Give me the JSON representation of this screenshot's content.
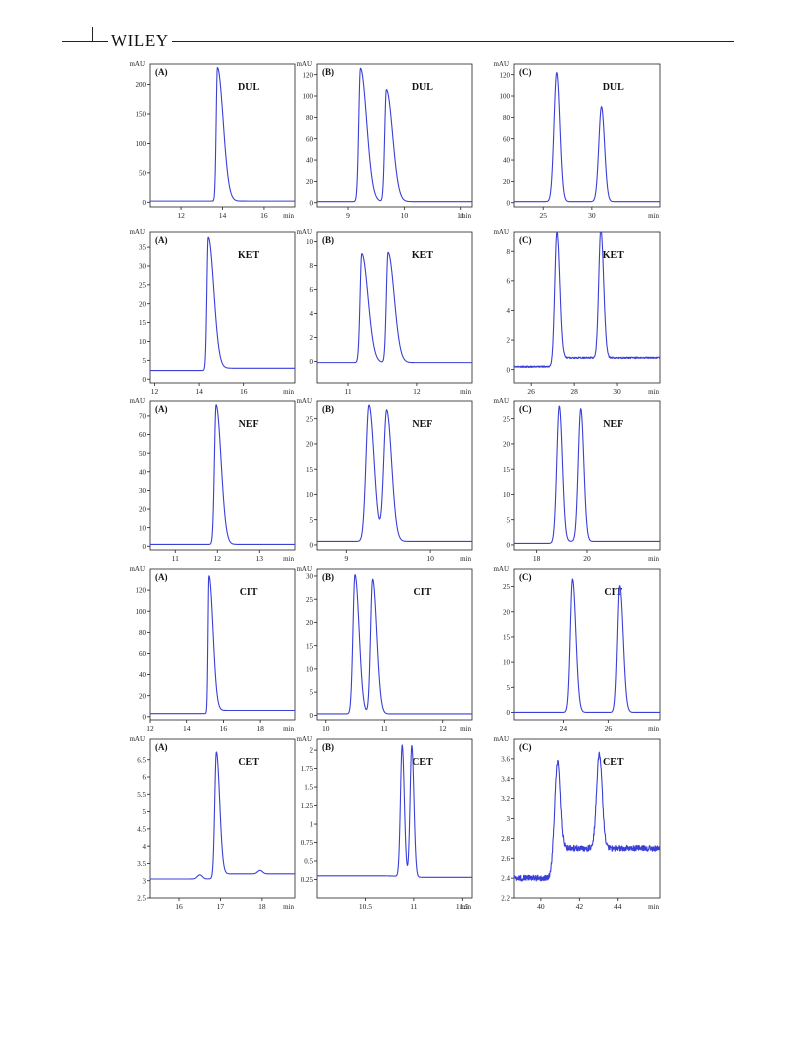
{
  "header": {
    "publisher": "WILEY"
  },
  "colors": {
    "trace": "#3a3fd6",
    "axis": "#222222"
  },
  "chart_data": [
    {
      "type": "line",
      "panel": "(A)",
      "analyte": "DUL",
      "xlabel": "min",
      "ylabel": "mAU",
      "xlim": [
        10.5,
        17.5
      ],
      "ylim": [
        -8,
        235
      ],
      "xticks": [
        12,
        14,
        16
      ],
      "xtick_labels": [
        "12",
        "14",
        "16"
      ],
      "yticks": [
        0,
        50,
        100,
        150,
        200
      ],
      "ytick_labels": [
        "0",
        "50",
        "100",
        "150",
        "200"
      ],
      "series": [
        {
          "baseline": 2,
          "tail": 0,
          "peaks": [
            {
              "rt": 13.75,
              "height": 227,
              "rise": 0.06,
              "decay": 0.28
            }
          ]
        }
      ]
    },
    {
      "type": "line",
      "panel": "(B)",
      "analyte": "DUL",
      "xlabel": "min",
      "ylabel": "mAU",
      "xlim": [
        8.45,
        11.2
      ],
      "ylim": [
        -4,
        130
      ],
      "xticks": [
        9,
        10,
        11
      ],
      "xtick_labels": [
        "9",
        "10",
        "11"
      ],
      "yticks": [
        0,
        20,
        40,
        60,
        80,
        100,
        120
      ],
      "ytick_labels": [
        "0",
        "20",
        "40",
        "60",
        "80",
        "100",
        "120"
      ],
      "series": [
        {
          "baseline": 1,
          "tail": 0,
          "peaks": [
            {
              "rt": 9.22,
              "height": 125,
              "rise": 0.03,
              "decay": 0.11
            },
            {
              "rt": 9.68,
              "height": 105,
              "rise": 0.03,
              "decay": 0.11
            }
          ]
        }
      ]
    },
    {
      "type": "line",
      "panel": "(C)",
      "analyte": "DUL",
      "xlabel": "min",
      "ylabel": "mAU",
      "xlim": [
        22,
        37
      ],
      "ylim": [
        -4,
        130
      ],
      "xticks": [
        25,
        30
      ],
      "xtick_labels": [
        "25",
        "30"
      ],
      "yticks": [
        0,
        20,
        40,
        60,
        80,
        100,
        120
      ],
      "ytick_labels": [
        "0",
        "20",
        "40",
        "60",
        "80",
        "100",
        "120"
      ],
      "series": [
        {
          "baseline": 1,
          "tail": 0,
          "peaks": [
            {
              "rt": 26.4,
              "height": 121,
              "rise": 0.28,
              "decay": 0.32
            },
            {
              "rt": 31.0,
              "height": 89,
              "rise": 0.28,
              "decay": 0.32
            }
          ]
        }
      ]
    },
    {
      "type": "line",
      "panel": "(A)",
      "analyte": "KET",
      "xlabel": "min",
      "ylabel": "mAU",
      "xlim": [
        11.8,
        18.3
      ],
      "ylim": [
        -1,
        39
      ],
      "xticks": [
        12,
        14,
        16
      ],
      "xtick_labels": [
        "12",
        "14",
        "16"
      ],
      "yticks": [
        0,
        5,
        10,
        15,
        20,
        25,
        30,
        35
      ],
      "ytick_labels": [
        "0",
        "5",
        "10",
        "15",
        "20",
        "25",
        "30",
        "35"
      ],
      "series": [
        {
          "baseline": 2.3,
          "tail": 0.6,
          "peaks": [
            {
              "rt": 14.4,
              "height": 35,
              "rise": 0.06,
              "decay": 0.25
            }
          ]
        }
      ]
    },
    {
      "type": "line",
      "panel": "(B)",
      "analyte": "KET",
      "xlabel": "min",
      "ylabel": "mAU",
      "xlim": [
        10.55,
        12.8
      ],
      "ylim": [
        -1.8,
        10.8
      ],
      "xticks": [
        11,
        12
      ],
      "xtick_labels": [
        "11",
        "12"
      ],
      "yticks": [
        0,
        2,
        4,
        6,
        8,
        10
      ],
      "ytick_labels": [
        "0",
        "2",
        "4",
        "6",
        "8",
        "10"
      ],
      "series": [
        {
          "baseline": -0.1,
          "tail": 0,
          "peaks": [
            {
              "rt": 11.2,
              "height": 9.1,
              "rise": 0.025,
              "decay": 0.09
            },
            {
              "rt": 11.58,
              "height": 9.2,
              "rise": 0.025,
              "decay": 0.09
            }
          ]
        }
      ]
    },
    {
      "type": "line",
      "panel": "(C)",
      "analyte": "KET",
      "xlabel": "min",
      "ylabel": "mAU",
      "xlim": [
        25.2,
        32
      ],
      "ylim": [
        -0.9,
        9.3
      ],
      "xticks": [
        26,
        28,
        30
      ],
      "xtick_labels": [
        "26",
        "28",
        "30"
      ],
      "yticks": [
        0,
        2,
        4,
        6,
        8
      ],
      "ytick_labels": [
        "0",
        "2",
        "4",
        "6",
        "8"
      ],
      "series": [
        {
          "baseline": 0.2,
          "tail": 0.6,
          "noise": 0.05,
          "peaks": [
            {
              "rt": 27.2,
              "height": 8.8,
              "rise": 0.1,
              "decay": 0.13
            },
            {
              "rt": 29.25,
              "height": 8.7,
              "rise": 0.1,
              "decay": 0.13
            }
          ]
        }
      ]
    },
    {
      "type": "line",
      "panel": "(A)",
      "analyte": "NEF",
      "xlabel": "min",
      "ylabel": "mAU",
      "xlim": [
        10.4,
        13.85
      ],
      "ylim": [
        -2,
        78
      ],
      "xticks": [
        11,
        12,
        13
      ],
      "xtick_labels": [
        "11",
        "12",
        "13"
      ],
      "yticks": [
        0,
        10,
        20,
        30,
        40,
        50,
        60,
        70
      ],
      "ytick_labels": [
        "0",
        "10",
        "20",
        "30",
        "40",
        "50",
        "60",
        "70"
      ],
      "series": [
        {
          "baseline": 1,
          "tail": 0,
          "peaks": [
            {
              "rt": 11.97,
              "height": 75,
              "rise": 0.04,
              "decay": 0.12
            }
          ]
        }
      ]
    },
    {
      "type": "line",
      "panel": "(B)",
      "analyte": "NEF",
      "xlabel": "min",
      "ylabel": "mAU",
      "xlim": [
        8.65,
        10.5
      ],
      "ylim": [
        -1,
        28.5
      ],
      "xticks": [
        9,
        10
      ],
      "xtick_labels": [
        "9",
        "10"
      ],
      "yticks": [
        0,
        5,
        10,
        15,
        20,
        25
      ],
      "ytick_labels": [
        "0",
        "5",
        "10",
        "15",
        "20",
        "25"
      ],
      "series": [
        {
          "baseline": 0.7,
          "tail": 0,
          "peaks": [
            {
              "rt": 9.27,
              "height": 27,
              "rise": 0.035,
              "decay": 0.06
            },
            {
              "rt": 9.48,
              "height": 26,
              "rise": 0.035,
              "decay": 0.06
            }
          ]
        }
      ]
    },
    {
      "type": "line",
      "panel": "(C)",
      "analyte": "NEF",
      "xlabel": "min",
      "ylabel": "mAU",
      "xlim": [
        17.1,
        22.9
      ],
      "ylim": [
        -1,
        28.5
      ],
      "xticks": [
        18,
        20
      ],
      "xtick_labels": [
        "18",
        "20"
      ],
      "yticks": [
        0,
        5,
        10,
        15,
        20,
        25
      ],
      "ytick_labels": [
        "0",
        "5",
        "10",
        "15",
        "20",
        "25"
      ],
      "series": [
        {
          "baseline": 0.3,
          "tail": 0.4,
          "peaks": [
            {
              "rt": 18.9,
              "height": 27,
              "rise": 0.1,
              "decay": 0.12
            },
            {
              "rt": 19.75,
              "height": 26.3,
              "rise": 0.1,
              "decay": 0.12
            }
          ]
        }
      ]
    },
    {
      "type": "line",
      "panel": "(A)",
      "analyte": "CIT",
      "xlabel": "min",
      "ylabel": "mAU",
      "xlim": [
        12,
        19.9
      ],
      "ylim": [
        -3,
        140
      ],
      "xticks": [
        12,
        14,
        16,
        18
      ],
      "xtick_labels": [
        "12",
        "14",
        "16",
        "18"
      ],
      "yticks": [
        0,
        20,
        40,
        60,
        80,
        100,
        120
      ],
      "ytick_labels": [
        "0",
        "20",
        "40",
        "60",
        "80",
        "100",
        "120"
      ],
      "series": [
        {
          "baseline": 3,
          "tail": 3,
          "peaks": [
            {
              "rt": 15.2,
              "height": 129,
              "rise": 0.05,
              "decay": 0.22
            }
          ]
        }
      ]
    },
    {
      "type": "line",
      "panel": "(B)",
      "analyte": "CIT",
      "xlabel": "min",
      "ylabel": "mAU",
      "xlim": [
        9.85,
        12.5
      ],
      "ylim": [
        -1,
        31.5
      ],
      "xticks": [
        10,
        11,
        12
      ],
      "xtick_labels": [
        "10",
        "11",
        "12"
      ],
      "yticks": [
        0,
        5,
        10,
        15,
        20,
        25,
        30
      ],
      "ytick_labels": [
        "0",
        "5",
        "10",
        "15",
        "20",
        "25",
        "30"
      ],
      "series": [
        {
          "baseline": 0.3,
          "tail": 0,
          "peaks": [
            {
              "rt": 10.5,
              "height": 30,
              "rise": 0.035,
              "decay": 0.07
            },
            {
              "rt": 10.8,
              "height": 29,
              "rise": 0.035,
              "decay": 0.07
            }
          ]
        }
      ]
    },
    {
      "type": "line",
      "panel": "(C)",
      "analyte": "CIT",
      "xlabel": "min",
      "ylabel": "mAU",
      "xlim": [
        21.8,
        28.3
      ],
      "ylim": [
        -1.5,
        28.5
      ],
      "xticks": [
        24,
        26
      ],
      "xtick_labels": [
        "24",
        "26"
      ],
      "yticks": [
        0,
        5,
        10,
        15,
        20,
        25
      ],
      "ytick_labels": [
        "0",
        "5",
        "10",
        "15",
        "20",
        "25"
      ],
      "series": [
        {
          "baseline": 0,
          "tail": 0,
          "peaks": [
            {
              "rt": 24.4,
              "height": 26.5,
              "rise": 0.1,
              "decay": 0.15
            },
            {
              "rt": 26.5,
              "height": 25.2,
              "rise": 0.1,
              "decay": 0.15
            }
          ]
        }
      ]
    },
    {
      "type": "line",
      "panel": "(A)",
      "analyte": "CET",
      "xlabel": "min",
      "ylabel": "mAU",
      "xlim": [
        15.3,
        18.8
      ],
      "ylim": [
        2.5,
        7.1
      ],
      "xticks": [
        16,
        17,
        18
      ],
      "xtick_labels": [
        "16",
        "17",
        "18"
      ],
      "yticks": [
        2.5,
        3,
        3.5,
        4,
        4.5,
        5,
        5.5,
        6,
        6.5
      ],
      "ytick_labels": [
        "2.5",
        "3",
        "3.5",
        "4",
        "4.5",
        "5",
        "5.5",
        "6",
        "6.5"
      ],
      "series": [
        {
          "baseline": 3.05,
          "tail": 0.15,
          "peaks": [
            {
              "rt": 16.9,
              "height": 3.6,
              "rise": 0.04,
              "decay": 0.08
            },
            {
              "rt": 16.5,
              "height": 0.12,
              "rise": 0.06,
              "decay": 0.06
            },
            {
              "rt": 17.95,
              "height": 0.1,
              "rise": 0.06,
              "decay": 0.06
            }
          ]
        }
      ]
    },
    {
      "type": "line",
      "panel": "(B)",
      "analyte": "CET",
      "xlabel": "min",
      "ylabel": "mAU",
      "xlim": [
        10,
        11.6
      ],
      "ylim": [
        0,
        2.15
      ],
      "xticks": [
        10.5,
        11,
        11.5
      ],
      "xtick_labels": [
        "10.5",
        "11",
        "11.5"
      ],
      "yticks": [
        0.25,
        0.5,
        0.75,
        1,
        1.25,
        1.5,
        1.75,
        2
      ],
      "ytick_labels": [
        "0.25",
        "0.5",
        "0.75",
        "1",
        "1.25",
        "1.5",
        "1.75",
        "2"
      ],
      "series": [
        {
          "baseline": 0.3,
          "tail": -0.02,
          "peaks": [
            {
              "rt": 10.88,
              "height": 1.78,
              "rise": 0.018,
              "decay": 0.022
            },
            {
              "rt": 10.98,
              "height": 1.78,
              "rise": 0.018,
              "decay": 0.022
            }
          ]
        }
      ]
    },
    {
      "type": "line",
      "panel": "(C)",
      "analyte": "CET",
      "xlabel": "min",
      "ylabel": "mAU",
      "xlim": [
        38.6,
        46.2
      ],
      "ylim": [
        2.2,
        3.8
      ],
      "xticks": [
        40,
        42,
        44
      ],
      "xtick_labels": [
        "40",
        "42",
        "44"
      ],
      "yticks": [
        2.2,
        2.4,
        2.6,
        2.8,
        3,
        3.2,
        3.4,
        3.6
      ],
      "ytick_labels": [
        "2.2",
        "2.4",
        "2.6",
        "2.8",
        "3",
        "3.2",
        "3.4",
        "3.6"
      ],
      "series": [
        {
          "baseline": 2.4,
          "tail": 0.3,
          "noise": 0.03,
          "peaks": [
            {
              "rt": 40.85,
              "height": 1.0,
              "rise": 0.15,
              "decay": 0.15
            },
            {
              "rt": 43.05,
              "height": 0.95,
              "rise": 0.15,
              "decay": 0.15
            }
          ]
        }
      ]
    }
  ]
}
